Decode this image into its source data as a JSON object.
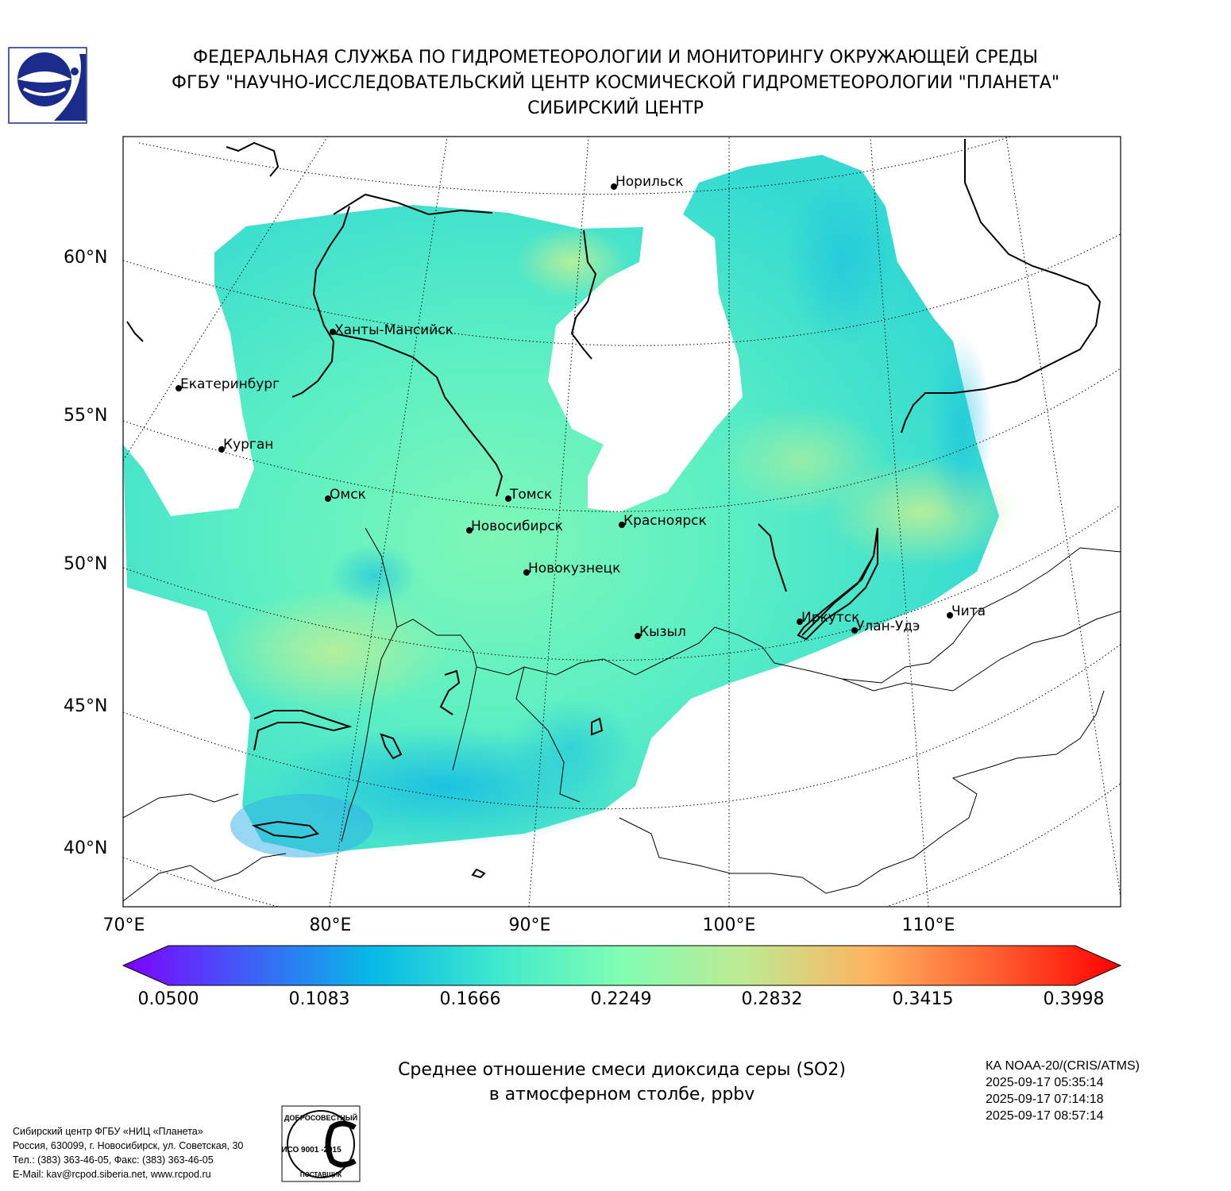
{
  "header": {
    "line1": "ФЕДЕРАЛЬНАЯ СЛУЖБА ПО ГИДРОМЕТЕОРОЛОГИИ И МОНИТОРИНГУ ОКРУЖАЮЩЕЙ СРЕДЫ",
    "line2": "ФГБУ \"НАУЧНО-ИССЛЕДОВАТЕЛЬСКИЙ ЦЕНТР КОСМИЧЕСКОЙ ГИДРОМЕТЕОРОЛОГИИ \"ПЛАНЕТА\"",
    "line3": "СИБИРСКИЙ ЦЕНТР"
  },
  "map": {
    "lat_labels": [
      "60°N",
      "55°N",
      "50°N",
      "45°N",
      "40°N"
    ],
    "lon_labels": [
      "70°E",
      "80°E",
      "90°E",
      "100°E",
      "110°E"
    ],
    "cities": [
      {
        "name": "Норильск"
      },
      {
        "name": "Ханты-Мансийск"
      },
      {
        "name": "Екатеринбург"
      },
      {
        "name": "Курган"
      },
      {
        "name": "Омск"
      },
      {
        "name": "Томск"
      },
      {
        "name": "Новосибирск"
      },
      {
        "name": "Красноярск"
      },
      {
        "name": "Новокузнецк"
      },
      {
        "name": "Кызыл"
      },
      {
        "name": "Иркутск"
      },
      {
        "name": "Улан-Удэ"
      },
      {
        "name": "Чита"
      }
    ]
  },
  "colorbar": {
    "min": 0.05,
    "max": 0.3998,
    "ticks": [
      "0.0500",
      "0.1083",
      "0.1666",
      "0.2249",
      "0.2832",
      "0.3415",
      "0.3998"
    ],
    "colormap": [
      "#7f00ff",
      "#3f5ef7",
      "#07b9e7",
      "#3fe9cd",
      "#80feb3",
      "#bfe992",
      "#ffb360",
      "#ff5e30",
      "#ff0000"
    ]
  },
  "caption": {
    "line1": "Среднее отношение смеси диоксида серы (SO2)",
    "line2": "в атмосферном столбе, ppbv"
  },
  "satellite": {
    "instrument": "КА NOAA-20/(CRIS/ATMS)",
    "times": [
      "2025-09-17 05:35:14",
      "2025-09-17 07:14:18",
      "2025-09-17 08:57:14"
    ]
  },
  "footer": {
    "line1": "Сибирский центр ФГБУ «НИЦ «Планета»",
    "line2": "Россия, 630099, г. Новосибирск, ул. Советская, 30",
    "line3": "Тел.: (383) 363-46-05, Факс: (383) 363-46-05",
    "line4": "E-Mail: kav@rcpod.siberia.net, www.rcpod.ru"
  },
  "iso_stamp": {
    "top": "ДОБРОСОВЕСТНЫЙ",
    "code": "ИСО 9001 -2015",
    "bottom": "ПОСТАВЩИК"
  },
  "logo": {
    "name": "planeta-logo"
  }
}
